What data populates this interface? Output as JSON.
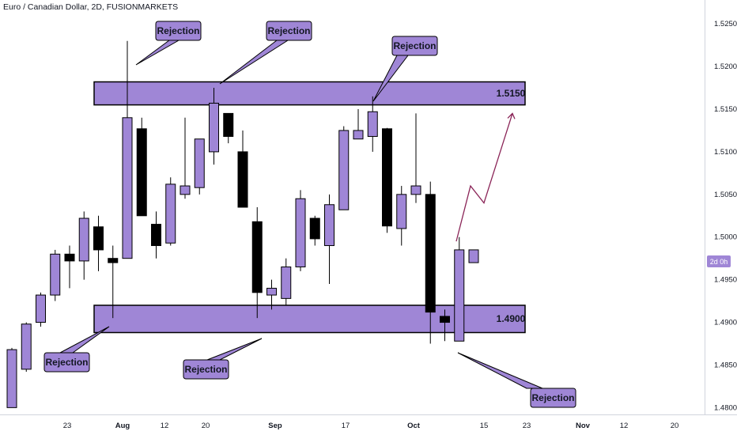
{
  "header": {
    "title": "Euro / Canadian Dollar, 2D, FUSIONMARKETS"
  },
  "price_tag": "2d 0h",
  "zones": [
    {
      "label": "1.5150",
      "top": 1.5182,
      "bottom": 1.5155
    },
    {
      "label": "1.4900",
      "top": 1.492,
      "bottom": 1.4888
    }
  ],
  "callouts": [
    "Rejection",
    "Rejection",
    "Rejection",
    "Rejection",
    "Rejection",
    "Rejection"
  ],
  "colors": {
    "bull": "#9f86d6",
    "bear": "#000000",
    "zone_fill": "#9f86d6",
    "projection": "#8a2457",
    "axis_text": "#131722"
  },
  "chart_data": {
    "type": "candlestick",
    "title": "Euro / Canadian Dollar, 2D, FUSIONMARKETS",
    "ylim": [
      1.4792,
      1.5278
    ],
    "yticks": [
      "1.52500",
      "1.52000",
      "1.51500",
      "1.51000",
      "1.50500",
      "1.50000",
      "1.49500",
      "1.49000",
      "1.48500",
      "1.48000"
    ],
    "xticks": [
      "23",
      "Aug",
      "12",
      "20",
      "Sep",
      "17",
      "Oct",
      "15",
      "23",
      "Nov",
      "12",
      "20"
    ],
    "xticks_bold": [
      "Aug",
      "Sep",
      "Oct",
      "Nov"
    ],
    "candles": [
      {
        "o": 1.48,
        "h": 1.487,
        "l": 1.48,
        "c": 1.4868
      },
      {
        "o": 1.4845,
        "h": 1.49,
        "l": 1.4842,
        "c": 1.4898
      },
      {
        "o": 1.49,
        "h": 1.4935,
        "l": 1.4895,
        "c": 1.4932
      },
      {
        "o": 1.4932,
        "h": 1.4985,
        "l": 1.4925,
        "c": 1.498
      },
      {
        "o": 1.498,
        "h": 1.499,
        "l": 1.494,
        "c": 1.4972
      },
      {
        "o": 1.4972,
        "h": 1.503,
        "l": 1.495,
        "c": 1.5022
      },
      {
        "o": 1.5012,
        "h": 1.5025,
        "l": 1.496,
        "c": 1.4985
      },
      {
        "o": 1.4975,
        "h": 1.499,
        "l": 1.4905,
        "c": 1.497
      },
      {
        "o": 1.4975,
        "h": 1.523,
        "l": 1.4975,
        "c": 1.514
      },
      {
        "o": 1.5127,
        "h": 1.514,
        "l": 1.5025,
        "c": 1.5025
      },
      {
        "o": 1.5015,
        "h": 1.503,
        "l": 1.4975,
        "c": 1.499
      },
      {
        "o": 1.4993,
        "h": 1.507,
        "l": 1.499,
        "c": 1.5062
      },
      {
        "o": 1.505,
        "h": 1.514,
        "l": 1.5045,
        "c": 1.506
      },
      {
        "o": 1.5058,
        "h": 1.5115,
        "l": 1.505,
        "c": 1.5115
      },
      {
        "o": 1.51,
        "h": 1.5175,
        "l": 1.5085,
        "c": 1.5157
      },
      {
        "o": 1.5145,
        "h": 1.5145,
        "l": 1.511,
        "c": 1.5118
      },
      {
        "o": 1.51,
        "h": 1.5125,
        "l": 1.5035,
        "c": 1.5035
      },
      {
        "o": 1.5018,
        "h": 1.5035,
        "l": 1.4905,
        "c": 1.4935
      },
      {
        "o": 1.4932,
        "h": 1.495,
        "l": 1.4915,
        "c": 1.494
      },
      {
        "o": 1.4928,
        "h": 1.4975,
        "l": 1.492,
        "c": 1.4965
      },
      {
        "o": 1.4965,
        "h": 1.5055,
        "l": 1.496,
        "c": 1.5045
      },
      {
        "o": 1.5022,
        "h": 1.5025,
        "l": 1.499,
        "c": 1.4998
      },
      {
        "o": 1.499,
        "h": 1.505,
        "l": 1.4945,
        "c": 1.5038
      },
      {
        "o": 1.5032,
        "h": 1.513,
        "l": 1.5032,
        "c": 1.5125
      },
      {
        "o": 1.5115,
        "h": 1.515,
        "l": 1.5115,
        "c": 1.5125
      },
      {
        "o": 1.5118,
        "h": 1.5165,
        "l": 1.51,
        "c": 1.5147
      },
      {
        "o": 1.5127,
        "h": 1.5128,
        "l": 1.5005,
        "c": 1.5013
      },
      {
        "o": 1.501,
        "h": 1.506,
        "l": 1.499,
        "c": 1.505
      },
      {
        "o": 1.505,
        "h": 1.5145,
        "l": 1.504,
        "c": 1.506
      },
      {
        "o": 1.505,
        "h": 1.5065,
        "l": 1.4875,
        "c": 1.4912
      },
      {
        "o": 1.4907,
        "h": 1.4915,
        "l": 1.4878,
        "c": 1.49
      },
      {
        "o": 1.4878,
        "h": 1.5,
        "l": 1.4878,
        "c": 1.4985
      },
      {
        "o": 1.497,
        "h": 1.4985,
        "l": 1.497,
        "c": 1.4985
      }
    ],
    "projection": [
      1.4995,
      1.506,
      1.504,
      1.5145
    ],
    "grid": false
  }
}
